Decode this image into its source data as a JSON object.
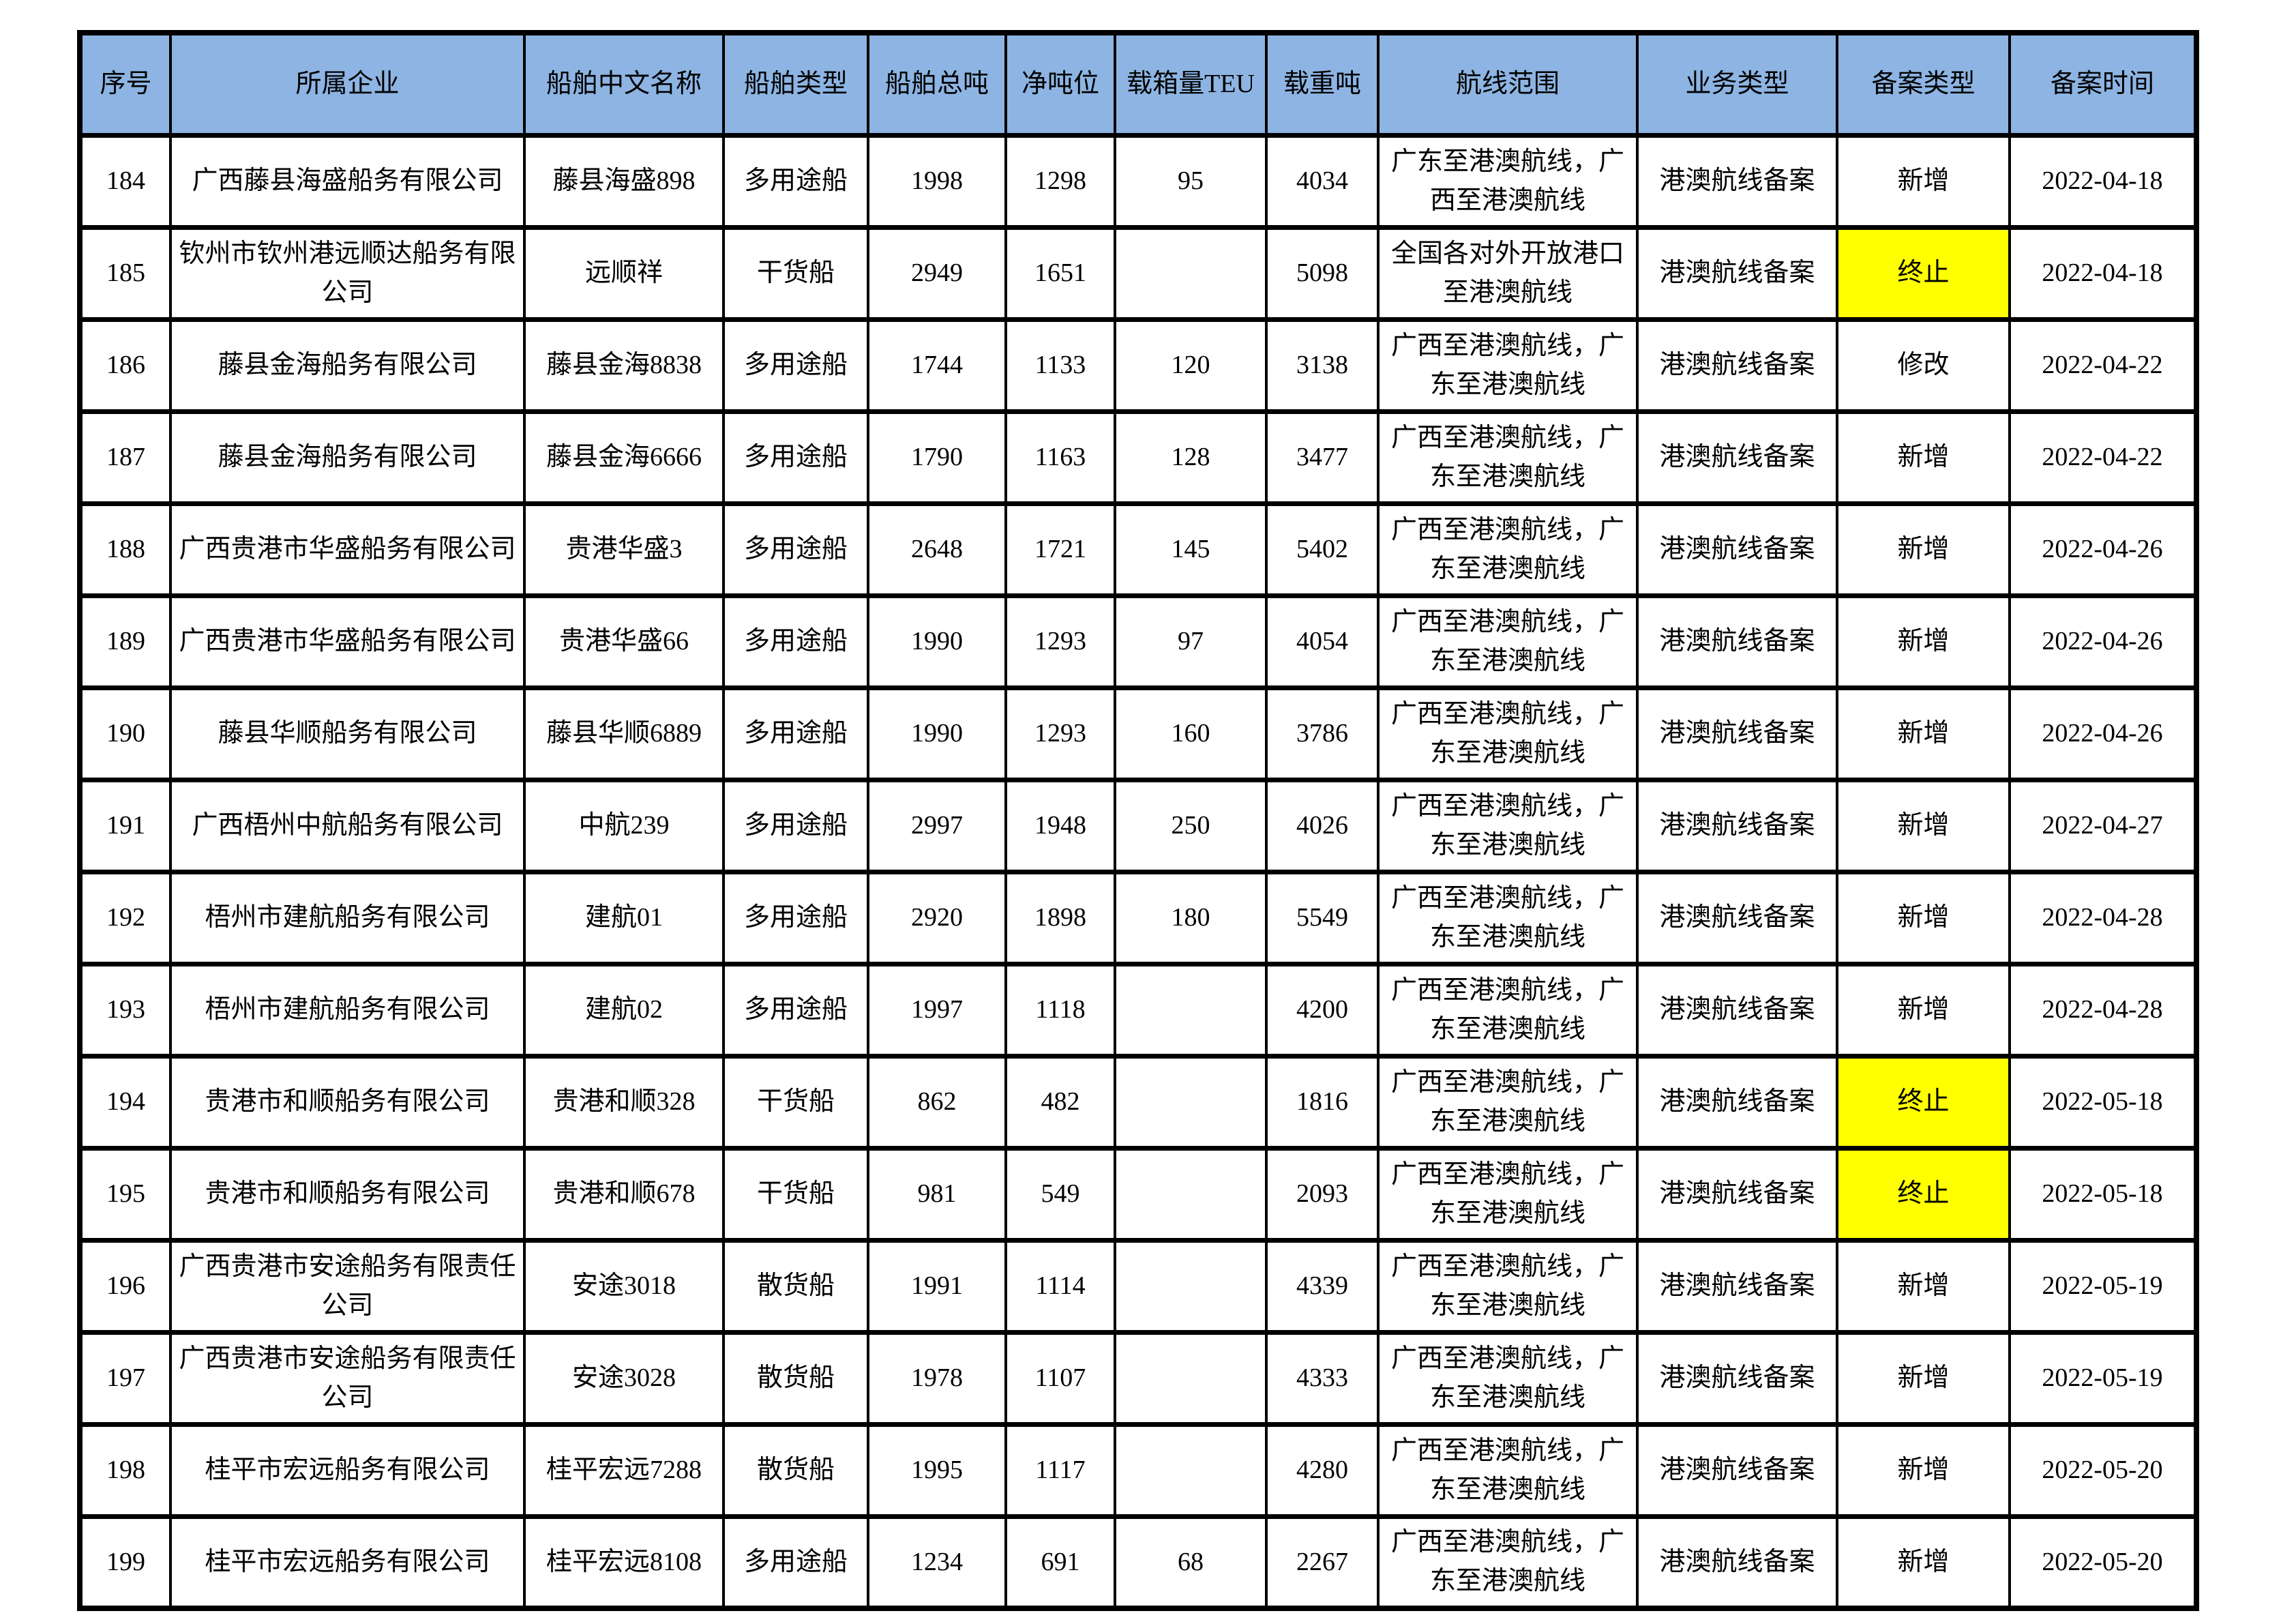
{
  "colors": {
    "header_bg": "#8DB4E2",
    "highlight_bg": "#FFFF00",
    "border": "#000000"
  },
  "table": {
    "columns": [
      {
        "key": "seq",
        "label": "序号"
      },
      {
        "key": "company",
        "label": "所属企业"
      },
      {
        "key": "ship_name",
        "label": "船舶中文名称"
      },
      {
        "key": "ship_type",
        "label": "船舶类型"
      },
      {
        "key": "gross_tonnage",
        "label": "船舶总吨"
      },
      {
        "key": "net_tonnage",
        "label": "净吨位"
      },
      {
        "key": "teu",
        "label": "载箱量TEU"
      },
      {
        "key": "deadweight",
        "label": "载重吨"
      },
      {
        "key": "route",
        "label": "航线范围"
      },
      {
        "key": "business_type",
        "label": "业务类型"
      },
      {
        "key": "record_type",
        "label": "备案类型"
      },
      {
        "key": "record_date",
        "label": "备案时间"
      }
    ],
    "rows": [
      {
        "seq": "184",
        "company": "广西藤县海盛船务有限公司",
        "ship_name": "藤县海盛898",
        "ship_type": "多用途船",
        "gross_tonnage": "1998",
        "net_tonnage": "1298",
        "teu": "95",
        "deadweight": "4034",
        "route": "广东至港澳航线，广西至港澳航线",
        "business_type": "港澳航线备案",
        "record_type": "新增",
        "record_type_highlight": false,
        "record_date": "2022-04-18"
      },
      {
        "seq": "185",
        "company": "钦州市钦州港远顺达船务有限公司",
        "ship_name": "远顺祥",
        "ship_type": "干货船",
        "gross_tonnage": "2949",
        "net_tonnage": "1651",
        "teu": "",
        "deadweight": "5098",
        "route": "全国各对外开放港口至港澳航线",
        "business_type": "港澳航线备案",
        "record_type": "终止",
        "record_type_highlight": true,
        "record_date": "2022-04-18"
      },
      {
        "seq": "186",
        "company": "藤县金海船务有限公司",
        "ship_name": "藤县金海8838",
        "ship_type": "多用途船",
        "gross_tonnage": "1744",
        "net_tonnage": "1133",
        "teu": "120",
        "deadweight": "3138",
        "route": "广西至港澳航线，广东至港澳航线",
        "business_type": "港澳航线备案",
        "record_type": "修改",
        "record_type_highlight": false,
        "record_date": "2022-04-22"
      },
      {
        "seq": "187",
        "company": "藤县金海船务有限公司",
        "ship_name": "藤县金海6666",
        "ship_type": "多用途船",
        "gross_tonnage": "1790",
        "net_tonnage": "1163",
        "teu": "128",
        "deadweight": "3477",
        "route": "广西至港澳航线，广东至港澳航线",
        "business_type": "港澳航线备案",
        "record_type": "新增",
        "record_type_highlight": false,
        "record_date": "2022-04-22"
      },
      {
        "seq": "188",
        "company": "广西贵港市华盛船务有限公司",
        "ship_name": "贵港华盛3",
        "ship_type": "多用途船",
        "gross_tonnage": "2648",
        "net_tonnage": "1721",
        "teu": "145",
        "deadweight": "5402",
        "route": "广西至港澳航线，广东至港澳航线",
        "business_type": "港澳航线备案",
        "record_type": "新增",
        "record_type_highlight": false,
        "record_date": "2022-04-26"
      },
      {
        "seq": "189",
        "company": "广西贵港市华盛船务有限公司",
        "ship_name": "贵港华盛66",
        "ship_type": "多用途船",
        "gross_tonnage": "1990",
        "net_tonnage": "1293",
        "teu": "97",
        "deadweight": "4054",
        "route": "广西至港澳航线，广东至港澳航线",
        "business_type": "港澳航线备案",
        "record_type": "新增",
        "record_type_highlight": false,
        "record_date": "2022-04-26"
      },
      {
        "seq": "190",
        "company": "藤县华顺船务有限公司",
        "ship_name": "藤县华顺6889",
        "ship_type": "多用途船",
        "gross_tonnage": "1990",
        "net_tonnage": "1293",
        "teu": "160",
        "deadweight": "3786",
        "route": "广西至港澳航线，广东至港澳航线",
        "business_type": "港澳航线备案",
        "record_type": "新增",
        "record_type_highlight": false,
        "record_date": "2022-04-26"
      },
      {
        "seq": "191",
        "company": "广西梧州中航船务有限公司",
        "ship_name": "中航239",
        "ship_type": "多用途船",
        "gross_tonnage": "2997",
        "net_tonnage": "1948",
        "teu": "250",
        "deadweight": "4026",
        "route": "广西至港澳航线，广东至港澳航线",
        "business_type": "港澳航线备案",
        "record_type": "新增",
        "record_type_highlight": false,
        "record_date": "2022-04-27"
      },
      {
        "seq": "192",
        "company": "梧州市建航船务有限公司",
        "ship_name": "建航01",
        "ship_type": "多用途船",
        "gross_tonnage": "2920",
        "net_tonnage": "1898",
        "teu": "180",
        "deadweight": "5549",
        "route": "广西至港澳航线，广东至港澳航线",
        "business_type": "港澳航线备案",
        "record_type": "新增",
        "record_type_highlight": false,
        "record_date": "2022-04-28"
      },
      {
        "seq": "193",
        "company": "梧州市建航船务有限公司",
        "ship_name": "建航02",
        "ship_type": "多用途船",
        "gross_tonnage": "1997",
        "net_tonnage": "1118",
        "teu": "",
        "deadweight": "4200",
        "route": "广西至港澳航线，广东至港澳航线",
        "business_type": "港澳航线备案",
        "record_type": "新增",
        "record_type_highlight": false,
        "record_date": "2022-04-28"
      },
      {
        "seq": "194",
        "company": "贵港市和顺船务有限公司",
        "ship_name": "贵港和顺328",
        "ship_type": "干货船",
        "gross_tonnage": "862",
        "net_tonnage": "482",
        "teu": "",
        "deadweight": "1816",
        "route": "广西至港澳航线，广东至港澳航线",
        "business_type": "港澳航线备案",
        "record_type": "终止",
        "record_type_highlight": true,
        "record_date": "2022-05-18"
      },
      {
        "seq": "195",
        "company": "贵港市和顺船务有限公司",
        "ship_name": "贵港和顺678",
        "ship_type": "干货船",
        "gross_tonnage": "981",
        "net_tonnage": "549",
        "teu": "",
        "deadweight": "2093",
        "route": "广西至港澳航线，广东至港澳航线",
        "business_type": "港澳航线备案",
        "record_type": "终止",
        "record_type_highlight": true,
        "record_date": "2022-05-18"
      },
      {
        "seq": "196",
        "company": "广西贵港市安途船务有限责任公司",
        "ship_name": "安途3018",
        "ship_type": "散货船",
        "gross_tonnage": "1991",
        "net_tonnage": "1114",
        "teu": "",
        "deadweight": "4339",
        "route": "广西至港澳航线，广东至港澳航线",
        "business_type": "港澳航线备案",
        "record_type": "新增",
        "record_type_highlight": false,
        "record_date": "2022-05-19"
      },
      {
        "seq": "197",
        "company": "广西贵港市安途船务有限责任公司",
        "ship_name": "安途3028",
        "ship_type": "散货船",
        "gross_tonnage": "1978",
        "net_tonnage": "1107",
        "teu": "",
        "deadweight": "4333",
        "route": "广西至港澳航线，广东至港澳航线",
        "business_type": "港澳航线备案",
        "record_type": "新增",
        "record_type_highlight": false,
        "record_date": "2022-05-19"
      },
      {
        "seq": "198",
        "company": "桂平市宏远船务有限公司",
        "ship_name": "桂平宏远7288",
        "ship_type": "散货船",
        "gross_tonnage": "1995",
        "net_tonnage": "1117",
        "teu": "",
        "deadweight": "4280",
        "route": "广西至港澳航线，广东至港澳航线",
        "business_type": "港澳航线备案",
        "record_type": "新增",
        "record_type_highlight": false,
        "record_date": "2022-05-20"
      },
      {
        "seq": "199",
        "company": "桂平市宏远船务有限公司",
        "ship_name": "桂平宏远8108",
        "ship_type": "多用途船",
        "gross_tonnage": "1234",
        "net_tonnage": "691",
        "teu": "68",
        "deadweight": "2267",
        "route": "广西至港澳航线，广东至港澳航线",
        "business_type": "港澳航线备案",
        "record_type": "新增",
        "record_type_highlight": false,
        "record_date": "2022-05-20"
      }
    ]
  }
}
